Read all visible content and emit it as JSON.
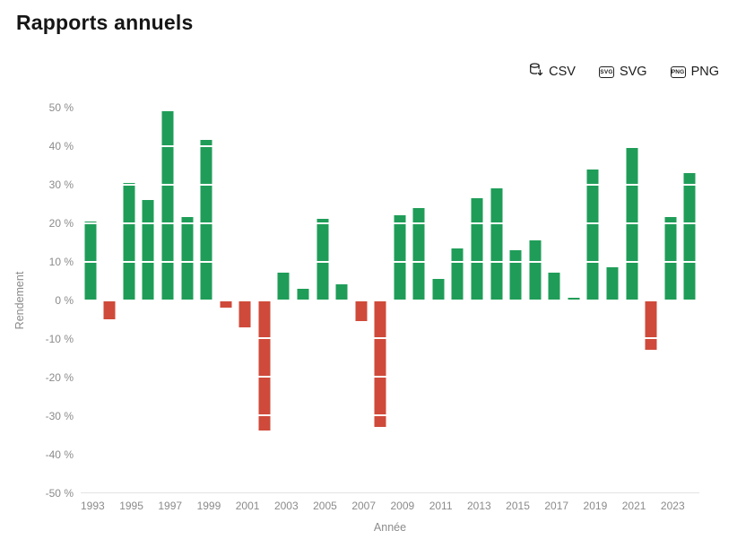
{
  "page": {
    "title": "Rapports annuels"
  },
  "toolbar": {
    "buttons": [
      {
        "id": "csv",
        "label": "CSV",
        "icon": "database-download-icon"
      },
      {
        "id": "svg",
        "label": "SVG",
        "icon": "svg-file-icon",
        "badge": "SVG"
      },
      {
        "id": "png",
        "label": "PNG",
        "icon": "png-file-icon",
        "badge": "PNG"
      }
    ]
  },
  "chart_data": {
    "type": "bar",
    "title": "Rapports annuels",
    "xlabel": "Année",
    "ylabel": "Rendement",
    "ylim": [
      -50,
      50
    ],
    "ytick_step": 10,
    "ytick_suffix": " %",
    "grid": "white-lines-over-bars",
    "legend": "none",
    "x": [
      1993,
      1994,
      1995,
      1996,
      1997,
      1998,
      1999,
      2000,
      2001,
      2002,
      2003,
      2004,
      2005,
      2006,
      2007,
      2008,
      2009,
      2010,
      2011,
      2012,
      2013,
      2014,
      2015,
      2016,
      2017,
      2018,
      2019,
      2020,
      2021,
      2022,
      2023,
      2024
    ],
    "values": [
      20.5,
      -5,
      30.5,
      26,
      49,
      21.5,
      41.5,
      -2,
      -7,
      -34,
      7,
      3,
      21,
      4,
      -5.5,
      -33,
      22,
      24,
      5.5,
      13.5,
      26.5,
      29,
      13,
      15.5,
      7,
      0.5,
      34,
      8.5,
      39.5,
      -13,
      21.5,
      33
    ],
    "xtick_labels": [
      "1993",
      "1995",
      "1997",
      "1999",
      "2001",
      "2003",
      "2005",
      "2007",
      "2009",
      "2011",
      "2013",
      "2015",
      "2017",
      "2019",
      "2021",
      "2023"
    ],
    "colors": {
      "positive": "#1f9d58",
      "negative": "#cf4a3a"
    }
  }
}
